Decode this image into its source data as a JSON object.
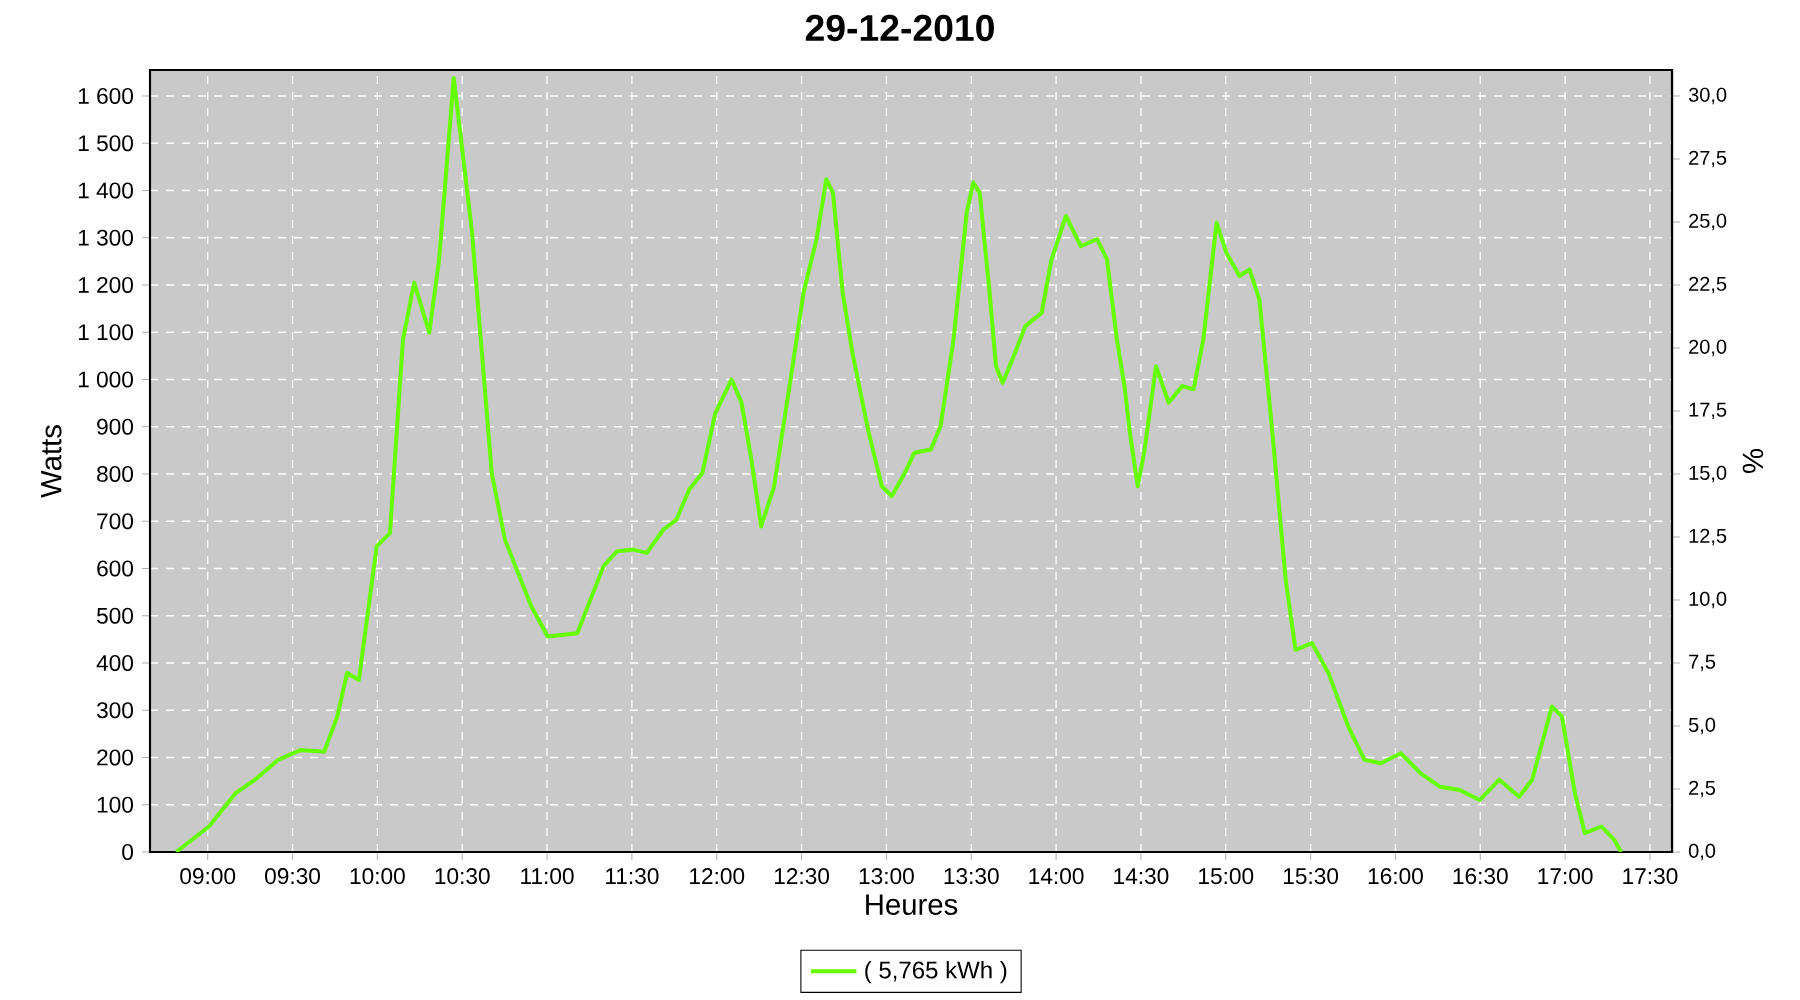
{
  "chart_data": {
    "type": "line",
    "title": "29-12-2010",
    "xlabel": "Heures",
    "ylabel": "Watts",
    "y2label": "%",
    "xlim": [
      8.66,
      17.63
    ],
    "ylim": [
      0,
      1655
    ],
    "y2lim": [
      0,
      31.03
    ],
    "xticks": [
      {
        "value": 9,
        "label": "09:00"
      },
      {
        "value": 9.5,
        "label": "09:30"
      },
      {
        "value": 10,
        "label": "10:00"
      },
      {
        "value": 10.5,
        "label": "10:30"
      },
      {
        "value": 11,
        "label": "11:00"
      },
      {
        "value": 11.5,
        "label": "11:30"
      },
      {
        "value": 12,
        "label": "12:00"
      },
      {
        "value": 12.5,
        "label": "12:30"
      },
      {
        "value": 13,
        "label": "13:00"
      },
      {
        "value": 13.5,
        "label": "13:30"
      },
      {
        "value": 14,
        "label": "14:00"
      },
      {
        "value": 14.5,
        "label": "14:30"
      },
      {
        "value": 15,
        "label": "15:00"
      },
      {
        "value": 15.5,
        "label": "15:30"
      },
      {
        "value": 16,
        "label": "16:00"
      },
      {
        "value": 16.5,
        "label": "16:30"
      },
      {
        "value": 17,
        "label": "17:00"
      },
      {
        "value": 17.5,
        "label": "17:30"
      }
    ],
    "yticks": [
      0,
      100,
      200,
      300,
      400,
      500,
      600,
      700,
      800,
      900,
      {
        "value": 1000,
        "label": "1 000"
      },
      {
        "value": 1100,
        "label": "1 100"
      },
      {
        "value": 1200,
        "label": "1 200"
      },
      {
        "value": 1300,
        "label": "1 300"
      },
      {
        "value": 1400,
        "label": "1 400"
      },
      {
        "value": 1500,
        "label": "1 500"
      },
      {
        "value": 1600,
        "label": "1 600"
      }
    ],
    "y2ticks": [
      {
        "value": 0,
        "label": "0,0"
      },
      {
        "value": 2.5,
        "label": "2,5"
      },
      {
        "value": 5,
        "label": "5,0"
      },
      {
        "value": 7.5,
        "label": "7,5"
      },
      {
        "value": 10,
        "label": "10,0"
      },
      {
        "value": 12.5,
        "label": "12,5"
      },
      {
        "value": 15,
        "label": "15,0"
      },
      {
        "value": 17.5,
        "label": "17,5"
      },
      {
        "value": 20,
        "label": "20,0"
      },
      {
        "value": 22.5,
        "label": "22,5"
      },
      {
        "value": 25,
        "label": "25,0"
      },
      {
        "value": 27.5,
        "label": "27,5"
      },
      {
        "value": 30,
        "label": "30,0"
      }
    ],
    "grid": true,
    "legend": "bottom",
    "marker": "none",
    "line_style": "solid",
    "series": [
      {
        "name": "( 5,765 kWh )",
        "color": "#66ff00",
        "x": [
          8.814,
          9.008,
          9.163,
          9.279,
          9.415,
          9.55,
          9.686,
          9.764,
          9.822,
          9.891,
          9.996,
          10.074,
          10.151,
          10.217,
          10.306,
          10.364,
          10.45,
          10.558,
          10.674,
          10.752,
          10.907,
          11.004,
          11.178,
          11.333,
          11.411,
          11.508,
          11.588,
          11.685,
          11.762,
          11.838,
          11.915,
          11.992,
          12.088,
          12.146,
          12.204,
          12.262,
          12.338,
          12.435,
          12.512,
          12.588,
          12.646,
          12.685,
          12.742,
          12.8,
          12.896,
          12.973,
          13.031,
          13.108,
          13.165,
          13.262,
          13.319,
          13.396,
          13.473,
          13.512,
          13.55,
          13.608,
          13.646,
          13.685,
          13.742,
          13.819,
          13.915,
          13.973,
          14.058,
          14.146,
          14.242,
          14.3,
          14.358,
          14.403,
          14.435,
          14.481,
          14.519,
          14.589,
          14.663,
          14.744,
          14.81,
          14.868,
          14.946,
          15.004,
          15.081,
          15.14,
          15.198,
          15.275,
          15.353,
          15.411,
          15.508,
          15.605,
          15.721,
          15.818,
          15.915,
          16.031,
          16.147,
          16.264,
          16.38,
          16.496,
          16.612,
          16.729,
          16.806,
          16.922,
          16.981,
          17.058,
          17.116,
          17.213,
          17.291,
          17.33
        ],
        "values": [
          0,
          54,
          124,
          153,
          195,
          216,
          212,
          287,
          379,
          364,
          647,
          675,
          1085,
          1205,
          1099,
          1254,
          1638,
          1311,
          802,
          661,
          520,
          456,
          463,
          605,
          636,
          640,
          633,
          682,
          703,
          767,
          802,
          929,
          1000,
          951,
          831,
          689,
          774,
          1000,
          1184,
          1297,
          1424,
          1395,
          1184,
          1056,
          887,
          774,
          753,
          802,
          845,
          852,
          901,
          1085,
          1353,
          1417,
          1395,
          1184,
          1028,
          993,
          1042,
          1113,
          1141,
          1254,
          1346,
          1282,
          1297,
          1254,
          1085,
          986,
          887,
          774,
          845,
          1028,
          951,
          986,
          979,
          1085,
          1332,
          1268,
          1219,
          1233,
          1169,
          887,
          576,
          428,
          442,
          379,
          266,
          195,
          188,
          209,
          167,
          138,
          131,
          110,
          153,
          117,
          153,
          308,
          287,
          124,
          40,
          54,
          25,
          0
        ]
      }
    ]
  }
}
